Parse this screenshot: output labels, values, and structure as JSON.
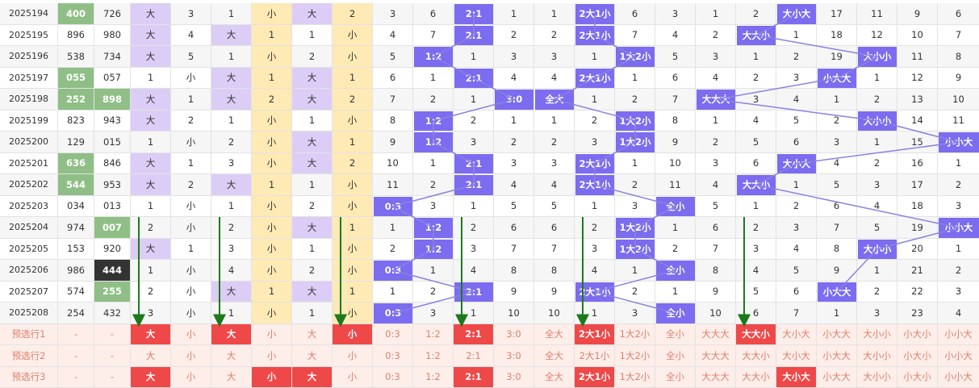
{
  "colors": {
    "purple_pill": "#7b6cf0",
    "purple_cell": "#dccdf6",
    "yellow_cell": "#ffeab5",
    "green_cell": "#8fbf86",
    "black_cell": "#333333",
    "red_pick": "#ef4848",
    "preselect_text": "#e0806a",
    "preselect_bg": "#fdeeea",
    "trend_line": "#8a82e0",
    "arrow": "#1c7a1c"
  },
  "rows": [
    {
      "issue": "2025194",
      "n1": "400",
      "n2": "726",
      "n1_style": "green",
      "n2_style": "",
      "c": [
        "大",
        "3",
        "1",
        "小",
        "大",
        "2",
        "3",
        "6",
        "2:1",
        "1",
        "1",
        "2大1小",
        "6",
        "3",
        "1",
        "2",
        "大小大",
        "17",
        "11",
        "9",
        "6"
      ]
    },
    {
      "issue": "2025195",
      "n1": "896",
      "n2": "980",
      "n1_style": "",
      "n2_style": "",
      "c": [
        "大",
        "4",
        "大",
        "1",
        "1",
        "小",
        "4",
        "7",
        "2:1",
        "2",
        "2",
        "2大1小",
        "7",
        "4",
        "2",
        "大大小",
        "1",
        "18",
        "12",
        "10",
        "7"
      ]
    },
    {
      "issue": "2025196",
      "n1": "538",
      "n2": "734",
      "n1_style": "",
      "n2_style": "",
      "c": [
        "大",
        "5",
        "1",
        "小",
        "2",
        "小",
        "5",
        "1:2",
        "1",
        "3",
        "3",
        "1",
        "1大2小",
        "5",
        "3",
        "1",
        "2",
        "19",
        "大小小",
        "11",
        "8"
      ]
    },
    {
      "issue": "2025197",
      "n1": "055",
      "n2": "057",
      "n1_style": "green",
      "n2_style": "",
      "c": [
        "1",
        "小",
        "大",
        "1",
        "大",
        "1",
        "6",
        "1",
        "2:1",
        "4",
        "4",
        "2大1小",
        "1",
        "6",
        "4",
        "2",
        "3",
        "小大大",
        "1",
        "12",
        "9"
      ]
    },
    {
      "issue": "2025198",
      "n1": "252",
      "n2": "898",
      "n1_style": "green",
      "n2_style": "green",
      "c": [
        "大",
        "1",
        "大",
        "2",
        "大",
        "2",
        "7",
        "2",
        "1",
        "3:0",
        "全大",
        "1",
        "2",
        "7",
        "大大大",
        "3",
        "4",
        "1",
        "2",
        "13",
        "10"
      ]
    },
    {
      "issue": "2025199",
      "n1": "823",
      "n2": "943",
      "n1_style": "",
      "n2_style": "",
      "c": [
        "大",
        "2",
        "1",
        "小",
        "1",
        "小",
        "8",
        "1:2",
        "2",
        "1",
        "1",
        "2",
        "1大2小",
        "8",
        "1",
        "4",
        "5",
        "2",
        "大小小",
        "14",
        "11"
      ]
    },
    {
      "issue": "2025200",
      "n1": "129",
      "n2": "015",
      "n1_style": "",
      "n2_style": "",
      "c": [
        "1",
        "小",
        "2",
        "小",
        "大",
        "1",
        "9",
        "1:2",
        "3",
        "2",
        "2",
        "3",
        "1大2小",
        "9",
        "2",
        "5",
        "6",
        "3",
        "1",
        "15",
        "小小大"
      ]
    },
    {
      "issue": "2025201",
      "n1": "636",
      "n2": "846",
      "n1_style": "green",
      "n2_style": "",
      "c": [
        "大",
        "1",
        "3",
        "小",
        "大",
        "2",
        "10",
        "1",
        "2:1",
        "3",
        "3",
        "2大1小",
        "1",
        "10",
        "3",
        "6",
        "大小大",
        "4",
        "2",
        "16",
        "1"
      ]
    },
    {
      "issue": "2025202",
      "n1": "544",
      "n2": "953",
      "n1_style": "green",
      "n2_style": "",
      "c": [
        "大",
        "2",
        "大",
        "1",
        "1",
        "小",
        "11",
        "2",
        "2:1",
        "4",
        "4",
        "2大1小",
        "2",
        "11",
        "4",
        "大大小",
        "1",
        "5",
        "3",
        "17",
        "2"
      ]
    },
    {
      "issue": "2025203",
      "n1": "034",
      "n2": "013",
      "n1_style": "",
      "n2_style": "",
      "c": [
        "1",
        "小",
        "1",
        "小",
        "2",
        "小",
        "0:3",
        "3",
        "1",
        "5",
        "5",
        "1",
        "3",
        "全小",
        "5",
        "1",
        "2",
        "6",
        "4",
        "18",
        "3"
      ]
    },
    {
      "issue": "2025204",
      "n1": "974",
      "n2": "007",
      "n1_style": "",
      "n2_style": "green",
      "c": [
        "2",
        "小",
        "2",
        "小",
        "大",
        "1",
        "1",
        "1:2",
        "2",
        "6",
        "6",
        "2",
        "1大2小",
        "1",
        "6",
        "2",
        "3",
        "7",
        "5",
        "19",
        "小小大"
      ]
    },
    {
      "issue": "2025205",
      "n1": "153",
      "n2": "920",
      "n1_style": "",
      "n2_style": "",
      "c": [
        "大",
        "1",
        "3",
        "小",
        "1",
        "小",
        "2",
        "1:2",
        "3",
        "7",
        "7",
        "3",
        "1大2小",
        "2",
        "7",
        "3",
        "4",
        "8",
        "大小小",
        "20",
        "1"
      ]
    },
    {
      "issue": "2025206",
      "n1": "986",
      "n2": "444",
      "n1_style": "",
      "n2_style": "black",
      "c": [
        "1",
        "小",
        "4",
        "小",
        "2",
        "小",
        "0:3",
        "1",
        "4",
        "8",
        "8",
        "4",
        "1",
        "全小",
        "8",
        "4",
        "5",
        "9",
        "1",
        "21",
        "2"
      ]
    },
    {
      "issue": "2025207",
      "n1": "574",
      "n2": "255",
      "n1_style": "",
      "n2_style": "green",
      "c": [
        "2",
        "小",
        "大",
        "1",
        "大",
        "1",
        "1",
        "2",
        "2:1",
        "9",
        "9",
        "2大1小",
        "2",
        "1",
        "9",
        "5",
        "6",
        "小大大",
        "2",
        "22",
        "3"
      ]
    },
    {
      "issue": "2025208",
      "n1": "254",
      "n2": "432",
      "n1_style": "",
      "n2_style": "",
      "c": [
        "3",
        "小",
        "1",
        "小",
        "1",
        "小",
        "0:3",
        "3",
        "1",
        "10",
        "10",
        "1",
        "3",
        "全小",
        "10",
        "6",
        "7",
        "1",
        "3",
        "23",
        "4"
      ]
    }
  ],
  "preselect": {
    "options": [
      "大",
      "小",
      "大",
      "小",
      "大",
      "小",
      "0:3",
      "1:2",
      "2:1",
      "3:0",
      "全大",
      "2大1小",
      "1大2小",
      "全小",
      "大大大",
      "大大小",
      "大小大",
      "小大大",
      "大小小",
      "小大小",
      "小小大"
    ],
    "rows": [
      {
        "label": "预选行1",
        "d1": "-",
        "d2": "-",
        "picked": [
          0,
          2,
          5,
          8,
          11,
          15
        ]
      },
      {
        "label": "预选行2",
        "d1": "-",
        "d2": "-",
        "picked": []
      },
      {
        "label": "预选行3",
        "d1": "-",
        "d2": "-",
        "picked": [
          0,
          3,
          4,
          8,
          11,
          16
        ]
      }
    ]
  }
}
